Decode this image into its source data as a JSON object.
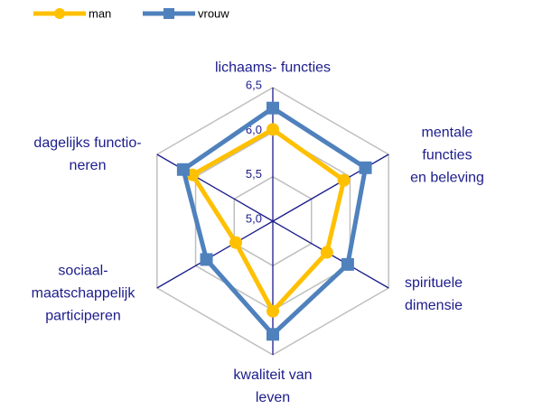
{
  "chart_data": {
    "type": "radar",
    "categories": [
      "lichaams- functies",
      "mentale functies\nen beleving",
      "spirituele\ndimensie",
      "kwaliteit van\nleven",
      "sociaal-\nmaatschappelijk\nparticiperen",
      "dagelijks functio-\nneren"
    ],
    "series": [
      {
        "name": "man",
        "color": "#FFC000",
        "marker": "circle",
        "values": [
          6.03,
          5.92,
          5.7,
          6.01,
          5.48,
          6.04
        ]
      },
      {
        "name": "vrouw",
        "color": "#4F81BD",
        "marker": "square",
        "values": [
          6.27,
          6.2,
          5.97,
          6.27,
          5.86,
          6.16
        ]
      }
    ],
    "ylim": [
      5,
      6.5
    ],
    "yticks": [
      {
        "value": 5,
        "label": "5,0"
      },
      {
        "value": 5.5,
        "label": "5,5"
      },
      {
        "value": 6,
        "label": "6,0"
      },
      {
        "value": 6.5,
        "label": "6,5"
      }
    ],
    "grid": true,
    "legend": "top-left"
  }
}
